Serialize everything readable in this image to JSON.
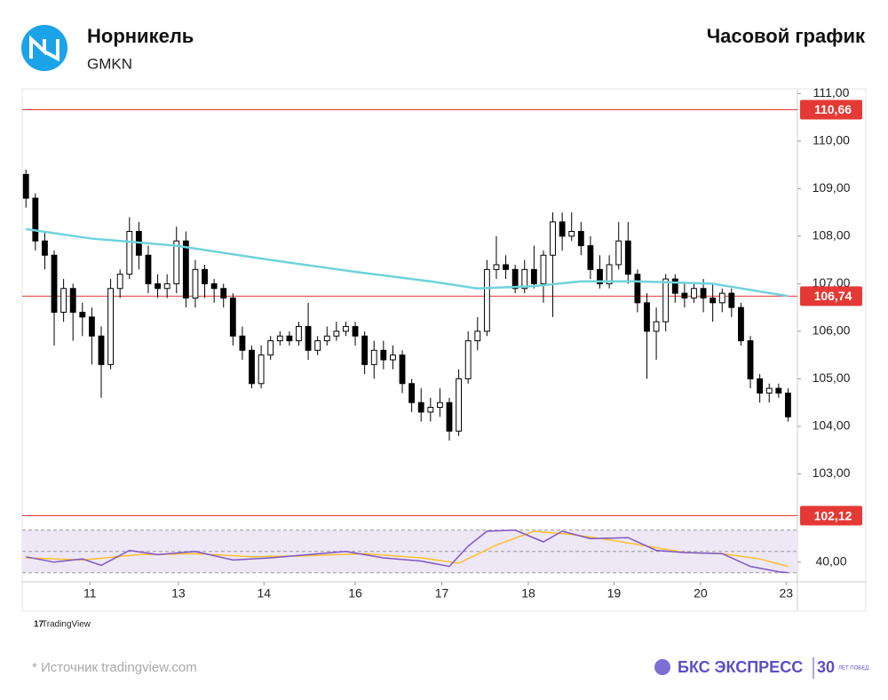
{
  "header": {
    "company": "Норникель",
    "ticker": "GMKN",
    "chart_kind": "Часовой график"
  },
  "footer": {
    "brand_small": "TradingView",
    "source": "* Источник tradingview.com",
    "logo": "БКС ЭКСПРЕСС",
    "logo_badge_num": "30",
    "logo_badge_text": "ЛЕТ ПОБЕД"
  },
  "chart_data": {
    "type": "candlestick",
    "xlim": [
      -0.4,
      82
    ],
    "xticks": [
      {
        "value": 6.8,
        "label": "11"
      },
      {
        "value": 16.2,
        "label": "13"
      },
      {
        "value": 25.3,
        "label": "14"
      },
      {
        "value": 35,
        "label": "16"
      },
      {
        "value": 44.2,
        "label": "17"
      },
      {
        "value": 53.4,
        "label": "18"
      },
      {
        "value": 62.5,
        "label": "19"
      },
      {
        "value": 71.7,
        "label": "20"
      },
      {
        "value": 80.8,
        "label": "23"
      }
    ],
    "ylim": [
      101.85,
      111.1
    ],
    "yticks": [
      {
        "value": 111,
        "label": "111,00"
      },
      {
        "value": 110,
        "label": "110,00"
      },
      {
        "value": 109,
        "label": "109,00"
      },
      {
        "value": 108,
        "label": "108,00"
      },
      {
        "value": 107,
        "label": "107,00"
      },
      {
        "value": 106,
        "label": "106,00"
      },
      {
        "value": 105,
        "label": "105,00"
      },
      {
        "value": 104,
        "label": "104,00"
      },
      {
        "value": 103,
        "label": "103,00"
      }
    ],
    "open": [
      109.3,
      108.8,
      107.9,
      107.6,
      106.4,
      106.9,
      106.4,
      106.3,
      105.9,
      105.3,
      106.9,
      107.2,
      108.1,
      107.6,
      107.0,
      106.9,
      107.0,
      107.9,
      106.7,
      107.3,
      107.0,
      106.9,
      106.7,
      105.9,
      105.6,
      104.9,
      105.5,
      105.8,
      105.9,
      105.8,
      106.1,
      105.6,
      105.8,
      105.9,
      106.0,
      106.1,
      105.9,
      105.3,
      105.6,
      105.4,
      105.5,
      104.9,
      104.5,
      104.3,
      104.4,
      104.5,
      103.9,
      105.0,
      105.8,
      106.0,
      107.3,
      107.4,
      107.3,
      106.9,
      107.3,
      107.0,
      107.6,
      108.3,
      108.0,
      108.1,
      107.8,
      107.3,
      107.0,
      107.4,
      107.9,
      107.2,
      106.6,
      106.0,
      106.2,
      107.1,
      106.8,
      106.7,
      106.9,
      106.7,
      106.6,
      106.8,
      106.5,
      105.8,
      105.0,
      104.7,
      104.8,
      104.7
    ],
    "high": [
      109.4,
      108.9,
      108.1,
      107.7,
      107.1,
      107.0,
      106.6,
      106.5,
      106.1,
      107.1,
      107.3,
      108.4,
      108.3,
      107.8,
      107.2,
      107.2,
      108.2,
      108.1,
      107.5,
      107.4,
      107.1,
      107.0,
      106.8,
      106.1,
      105.7,
      105.7,
      105.9,
      106.0,
      106.0,
      106.2,
      106.6,
      105.9,
      106.1,
      106.2,
      106.2,
      106.2,
      106.0,
      105.8,
      105.8,
      105.7,
      105.6,
      105.0,
      104.8,
      104.6,
      104.8,
      104.6,
      105.2,
      106.0,
      106.3,
      107.5,
      108.0,
      107.6,
      107.4,
      107.5,
      107.8,
      107.7,
      108.5,
      108.5,
      108.5,
      108.3,
      108.0,
      107.6,
      107.6,
      108.3,
      108.3,
      107.3,
      106.8,
      106.5,
      107.2,
      107.2,
      107.0,
      107.0,
      107.1,
      107.0,
      106.9,
      106.9,
      106.6,
      105.9,
      105.1,
      104.9,
      104.9,
      104.8
    ],
    "low": [
      108.6,
      107.7,
      107.3,
      105.7,
      106.2,
      105.8,
      105.9,
      105.3,
      104.6,
      105.2,
      106.7,
      107.1,
      107.3,
      106.8,
      106.7,
      106.7,
      106.8,
      106.5,
      106.5,
      106.7,
      106.6,
      106.5,
      105.7,
      105.4,
      104.8,
      104.8,
      105.4,
      105.7,
      105.7,
      105.7,
      105.4,
      105.5,
      105.7,
      105.8,
      105.9,
      105.7,
      105.1,
      105.0,
      105.2,
      105.2,
      104.7,
      104.3,
      104.1,
      104.1,
      104.2,
      103.7,
      103.8,
      104.9,
      105.6,
      105.9,
      107.1,
      107.1,
      106.8,
      106.8,
      106.9,
      106.6,
      106.3,
      107.7,
      107.9,
      107.6,
      107.1,
      106.9,
      106.9,
      107.3,
      107.0,
      106.4,
      105.0,
      105.4,
      106.0,
      106.6,
      106.5,
      106.6,
      106.4,
      106.2,
      106.4,
      106.3,
      105.7,
      104.8,
      104.5,
      104.5,
      104.6,
      104.1
    ],
    "close": [
      108.8,
      107.9,
      107.6,
      106.4,
      106.9,
      106.4,
      106.3,
      105.9,
      105.3,
      106.9,
      107.2,
      108.1,
      107.6,
      107.0,
      106.9,
      107.0,
      107.9,
      106.7,
      107.3,
      107.0,
      106.9,
      106.7,
      105.9,
      105.6,
      104.9,
      105.5,
      105.8,
      105.9,
      105.8,
      106.1,
      105.6,
      105.8,
      105.9,
      106.0,
      106.1,
      105.9,
      105.3,
      105.6,
      105.4,
      105.5,
      104.9,
      104.5,
      104.3,
      104.4,
      104.5,
      103.9,
      105.0,
      105.8,
      106.0,
      107.3,
      107.4,
      107.3,
      106.9,
      107.3,
      107.0,
      107.6,
      108.3,
      108.0,
      108.1,
      107.8,
      107.3,
      107.0,
      107.4,
      107.9,
      107.2,
      106.6,
      106.0,
      106.2,
      107.1,
      106.8,
      106.7,
      106.9,
      106.7,
      106.6,
      106.8,
      106.5,
      105.8,
      105.0,
      104.7,
      104.8,
      104.7,
      104.2
    ],
    "up_color": "#ffffff",
    "down_color": "#000000",
    "ma": {
      "color": "#6fd3dc",
      "x": [
        0,
        7,
        16,
        26,
        35,
        43,
        48,
        54,
        59,
        65,
        73,
        81
      ],
      "values": [
        108.15,
        107.95,
        107.8,
        107.5,
        107.25,
        107.05,
        106.9,
        106.95,
        107.05,
        107.05,
        107.0,
        106.74
      ]
    },
    "levels": [
      {
        "value": 110.66,
        "label": "110,66"
      },
      {
        "value": 106.74,
        "label": "106,74"
      },
      {
        "value": 102.12,
        "label": "102,12"
      }
    ],
    "level_color": "#e53935",
    "rsi": {
      "ylim": [
        24,
        74
      ],
      "yticks": [
        {
          "value": 40,
          "label": "40,00"
        }
      ],
      "bands": [
        70,
        50,
        30
      ],
      "band_fill": "#ede7f6",
      "line": {
        "color": "#7e57c2",
        "x": [
          0,
          3,
          6,
          8,
          11,
          14,
          18,
          22,
          26,
          30,
          34,
          38,
          42,
          45,
          47,
          49,
          52,
          55,
          57,
          60,
          64,
          67,
          70,
          74,
          77,
          80,
          81
        ],
        "values": [
          45,
          40,
          43,
          37,
          51,
          47,
          50,
          42,
          44,
          47,
          50,
          44,
          41,
          36,
          55,
          69,
          70,
          59,
          69,
          62,
          63,
          51,
          49,
          48,
          36,
          31,
          30
        ]
      },
      "ma": {
        "color": "#fbc02d",
        "x": [
          0,
          6,
          12,
          18,
          24,
          30,
          36,
          42,
          46,
          50,
          54,
          58,
          62,
          66,
          70,
          74,
          78,
          81
        ],
        "values": [
          44,
          42,
          47,
          48,
          45,
          46,
          48,
          44,
          39,
          56,
          69,
          66,
          61,
          55,
          49,
          48,
          43,
          36
        ]
      }
    }
  }
}
